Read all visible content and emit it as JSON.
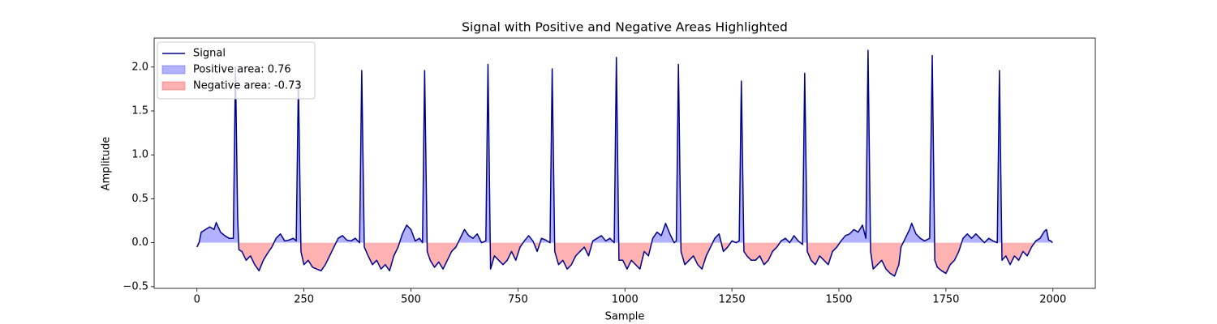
{
  "chart_data": {
    "type": "line",
    "title": "Signal with Positive and Negative Areas Highlighted",
    "x_label": "Sample",
    "y_label": "Amplitude",
    "xlim": [
      -100,
      2099
    ],
    "ylim": [
      -0.52,
      2.33
    ],
    "xticks": [
      0,
      250,
      500,
      750,
      1000,
      1250,
      1500,
      1750,
      2000
    ],
    "yticks": [
      {
        "value": -0.5,
        "label": "−0.5"
      },
      {
        "value": 0,
        "label": "0.0"
      },
      {
        "value": 0.5,
        "label": "0.5"
      },
      {
        "value": 1,
        "label": "1.0"
      },
      {
        "value": 1.5,
        "label": "1.5"
      },
      {
        "value": 2,
        "label": "2.0"
      }
    ],
    "legend": "upper left",
    "areas": [
      {
        "name": "Positive area: 0.76",
        "color": "#0000ff"
      },
      {
        "name": "Negative area: -0.73",
        "color": "#ff0000"
      }
    ],
    "series": [
      {
        "name": "Signal",
        "color": "#00008b",
        "x": [
          0,
          5,
          10,
          20,
          30,
          40,
          45,
          55,
          65,
          75,
          85,
          90,
          95,
          98,
          105,
          115,
          125,
          135,
          145,
          155,
          165,
          175,
          185,
          195,
          205,
          215,
          225,
          232,
          237,
          243,
          250,
          260,
          270,
          280,
          290,
          300,
          310,
          320,
          330,
          340,
          350,
          360,
          370,
          380,
          385,
          391,
          400,
          410,
          420,
          430,
          440,
          450,
          460,
          470,
          480,
          490,
          500,
          510,
          520,
          527,
          532,
          538,
          545,
          555,
          565,
          575,
          585,
          595,
          605,
          615,
          625,
          635,
          645,
          655,
          665,
          675,
          680,
          686,
          695,
          705,
          715,
          725,
          735,
          745,
          755,
          765,
          775,
          785,
          795,
          805,
          815,
          825,
          830,
          836,
          845,
          855,
          865,
          875,
          885,
          895,
          905,
          915,
          925,
          935,
          945,
          955,
          965,
          975,
          980,
          986,
          995,
          1005,
          1015,
          1025,
          1035,
          1045,
          1055,
          1065,
          1075,
          1085,
          1095,
          1105,
          1115,
          1120,
          1125,
          1131,
          1140,
          1150,
          1160,
          1170,
          1180,
          1190,
          1200,
          1210,
          1220,
          1230,
          1240,
          1250,
          1260,
          1267,
          1272,
          1278,
          1285,
          1295,
          1305,
          1315,
          1325,
          1335,
          1345,
          1355,
          1365,
          1375,
          1385,
          1395,
          1405,
          1415,
          1420,
          1426,
          1435,
          1445,
          1455,
          1465,
          1475,
          1485,
          1495,
          1505,
          1515,
          1525,
          1535,
          1545,
          1555,
          1563,
          1568,
          1574,
          1580,
          1590,
          1600,
          1610,
          1620,
          1630,
          1640,
          1645,
          1655,
          1665,
          1670,
          1680,
          1690,
          1700,
          1712,
          1718,
          1724,
          1730,
          1740,
          1750,
          1760,
          1770,
          1780,
          1790,
          1800,
          1810,
          1820,
          1830,
          1840,
          1850,
          1860,
          1870,
          1875,
          1881,
          1890,
          1900,
          1910,
          1920,
          1930,
          1940,
          1950,
          1960,
          1970,
          1980,
          1985,
          1990,
          1995,
          1999
        ],
        "values": [
          -0.05,
          0.0,
          0.12,
          0.15,
          0.18,
          0.15,
          0.23,
          0.12,
          0.08,
          0.05,
          0.05,
          2.0,
          0.3,
          -0.08,
          -0.1,
          -0.2,
          -0.15,
          -0.25,
          -0.32,
          -0.2,
          -0.12,
          -0.05,
          0.05,
          0.1,
          0.02,
          0.03,
          0.05,
          0.02,
          1.84,
          -0.1,
          -0.25,
          -0.2,
          -0.28,
          -0.3,
          -0.32,
          -0.25,
          -0.15,
          -0.05,
          0.05,
          0.08,
          0.03,
          0.02,
          0.05,
          0.0,
          1.96,
          -0.05,
          -0.15,
          -0.25,
          -0.2,
          -0.3,
          -0.25,
          -0.32,
          -0.15,
          -0.05,
          0.1,
          0.2,
          0.15,
          0.02,
          0.05,
          0.0,
          1.96,
          -0.1,
          -0.2,
          -0.28,
          -0.22,
          -0.3,
          -0.2,
          -0.1,
          -0.05,
          0.05,
          0.15,
          0.08,
          0.05,
          0.1,
          0.0,
          0.02,
          2.03,
          -0.3,
          -0.15,
          -0.2,
          -0.25,
          -0.2,
          -0.1,
          -0.2,
          -0.05,
          0.02,
          0.08,
          0.02,
          -0.1,
          0.05,
          0.03,
          0.0,
          1.98,
          -0.1,
          -0.25,
          -0.2,
          -0.3,
          -0.25,
          -0.15,
          -0.1,
          -0.05,
          -0.15,
          0.02,
          0.05,
          0.08,
          0.02,
          0.05,
          0.0,
          2.11,
          -0.2,
          -0.2,
          -0.3,
          -0.2,
          -0.25,
          -0.3,
          -0.1,
          -0.15,
          0.05,
          0.12,
          0.08,
          0.22,
          0.1,
          0.0,
          0.02,
          2.03,
          -0.1,
          -0.25,
          -0.2,
          -0.15,
          -0.25,
          -0.3,
          -0.15,
          -0.05,
          0.05,
          0.1,
          -0.1,
          -0.05,
          0.02,
          0.0,
          0.02,
          1.84,
          -0.1,
          -0.15,
          -0.2,
          -0.2,
          -0.15,
          -0.25,
          -0.2,
          -0.1,
          -0.05,
          0.02,
          0.05,
          0.0,
          0.08,
          0.02,
          -0.02,
          1.93,
          -0.1,
          -0.2,
          -0.25,
          -0.15,
          -0.2,
          -0.25,
          -0.1,
          -0.05,
          0.02,
          0.08,
          0.1,
          0.15,
          0.12,
          0.2,
          0.05,
          2.19,
          -0.1,
          -0.3,
          -0.25,
          -0.2,
          -0.3,
          -0.35,
          -0.38,
          -0.25,
          -0.05,
          0.05,
          0.15,
          0.22,
          0.1,
          0.05,
          0.02,
          0.05,
          2.13,
          -0.2,
          -0.28,
          -0.32,
          -0.35,
          -0.25,
          -0.2,
          -0.1,
          0.05,
          0.1,
          0.05,
          0.1,
          0.05,
          0.0,
          0.05,
          0.02,
          0.0,
          1.96,
          -0.2,
          -0.15,
          -0.25,
          -0.15,
          -0.2,
          -0.1,
          -0.15,
          -0.05,
          0.02,
          0.05,
          0.13,
          0.15,
          0.03,
          0.02,
          0.0
        ]
      }
    ]
  }
}
